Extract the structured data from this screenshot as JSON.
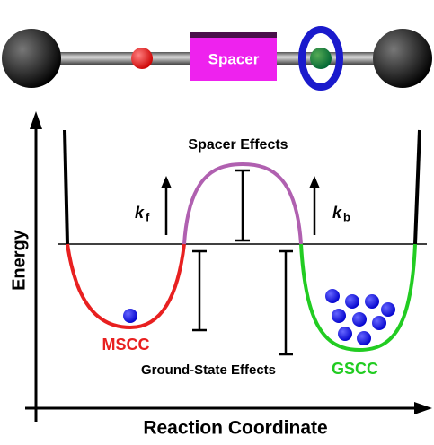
{
  "molecule": {
    "spacer_label": "Spacer"
  },
  "diagram": {
    "barrier_label": "Spacer Effects",
    "forward_rate": {
      "symbol": "k",
      "subscript": "f"
    },
    "backward_rate": {
      "symbol": "k",
      "subscript": "b"
    },
    "y_axis_label": "Energy",
    "x_axis_label": "Reaction Coordinate",
    "left_state": "MSCC",
    "right_state": "GSCC",
    "well_label": "Ground-State Effects"
  }
}
